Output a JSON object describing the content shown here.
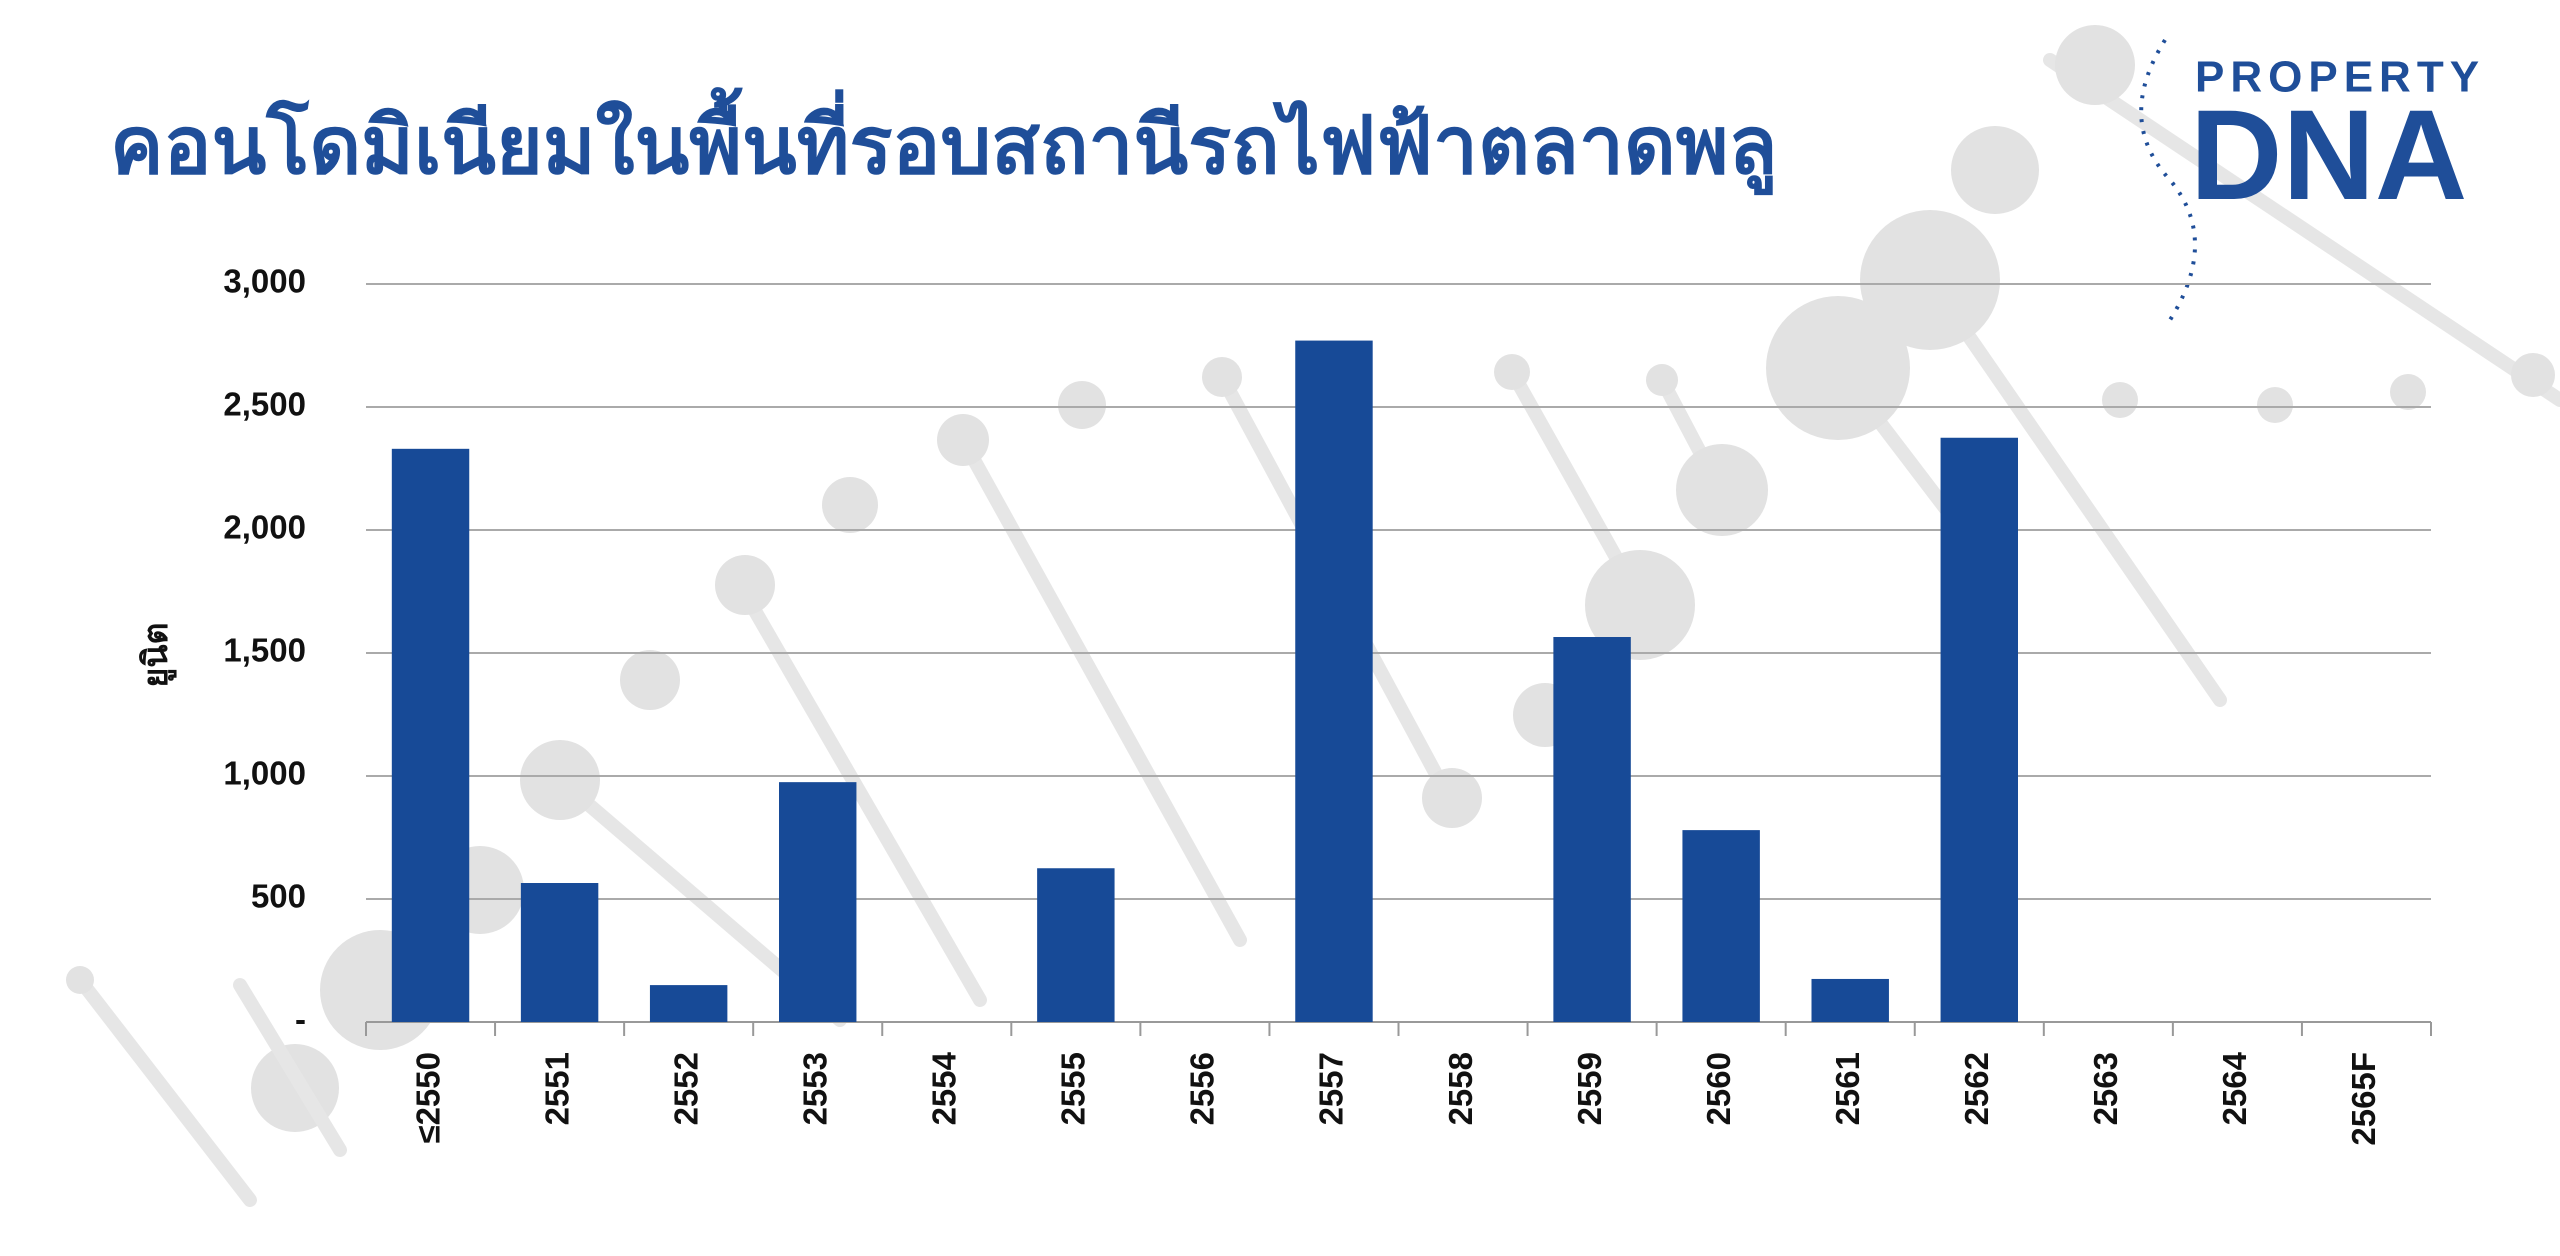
{
  "chart_data": {
    "type": "bar",
    "title": "คอนโดมิเนียมในพื้นที่รอบสถานีรถไฟฟ้าตลาดพลู",
    "ylabel": "ยูนิต",
    "categories": [
      "≤2550",
      "2551",
      "2552",
      "2553",
      "2554",
      "2555",
      "2556",
      "2557",
      "2558",
      "2559",
      "2560",
      "2561",
      "2562",
      "2563",
      "2564",
      "2565F"
    ],
    "values": [
      2330,
      565,
      150,
      975,
      0,
      625,
      0,
      2770,
      0,
      1565,
      780,
      175,
      2375,
      0,
      0,
      0
    ],
    "color": "#174a97",
    "ylim": [
      0,
      3000
    ],
    "yticks": [
      {
        "value": 0,
        "label": "-"
      },
      500,
      {
        "value": 1000,
        "label": "1,000"
      },
      {
        "value": 1500,
        "label": "1,500"
      },
      {
        "value": 2000,
        "label": "2,000"
      },
      {
        "value": 2500,
        "label": "2,500"
      },
      {
        "value": 3000,
        "label": "3,000"
      }
    ],
    "grid": true
  },
  "logo": {
    "top": "PROPERTY",
    "bottom": "DNA"
  }
}
